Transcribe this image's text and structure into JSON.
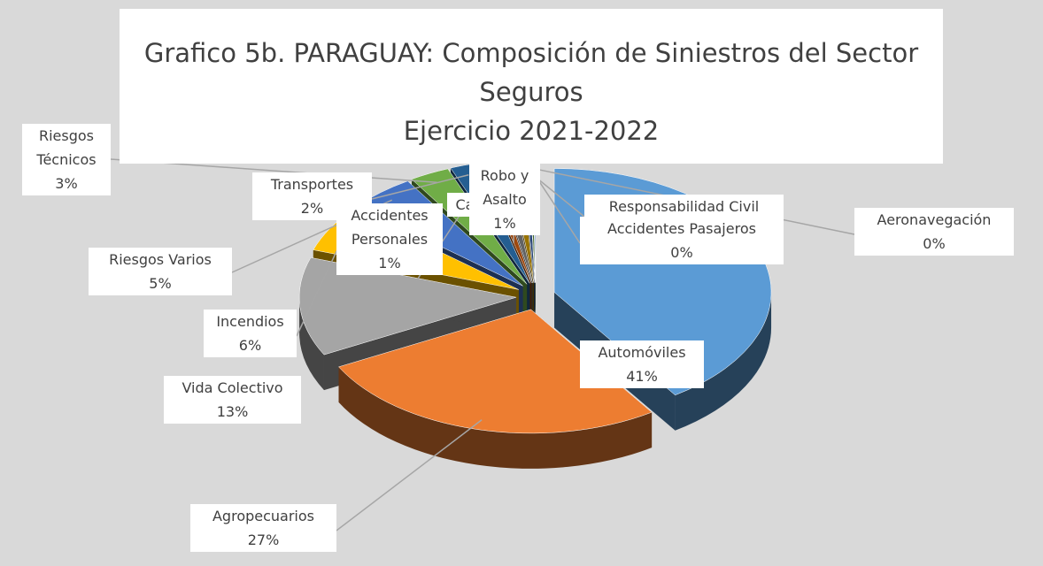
{
  "chart_data": {
    "type": "pie",
    "title": "Grafico 5b. PARAGUAY: Composición de Siniestros del Sector Seguros",
    "subtitle": "Ejercicio 2021-2022",
    "categories": [
      "Automóviles",
      "Agropecuarios",
      "Vida Colectivo",
      "Incendios",
      "Riesgos Varios",
      "Riesgos Técnicos",
      "Transportes",
      "Accidentes Personales",
      "Ca",
      "Robo y Asalto",
      "Responsabilidad Civil",
      "Accidentes Pasajeros",
      "Aeronavegación"
    ],
    "values": [
      41,
      27,
      13,
      6,
      5,
      3,
      2,
      1,
      1,
      1,
      0.5,
      0.3,
      0.2
    ],
    "value_labels": [
      "41%",
      "27%",
      "13%",
      "6%",
      "5%",
      "3%",
      "2%",
      "1%",
      null,
      "1%",
      null,
      "0%",
      "0%"
    ],
    "colors": [
      "#5b9bd5",
      "#ed7d31",
      "#a5a5a5",
      "#ffc000",
      "#4472c4",
      "#70ad47",
      "#255e91",
      "#9e480e",
      "#636363",
      "#997300",
      "#264478",
      "#43682b",
      "#698ed0"
    ]
  }
}
